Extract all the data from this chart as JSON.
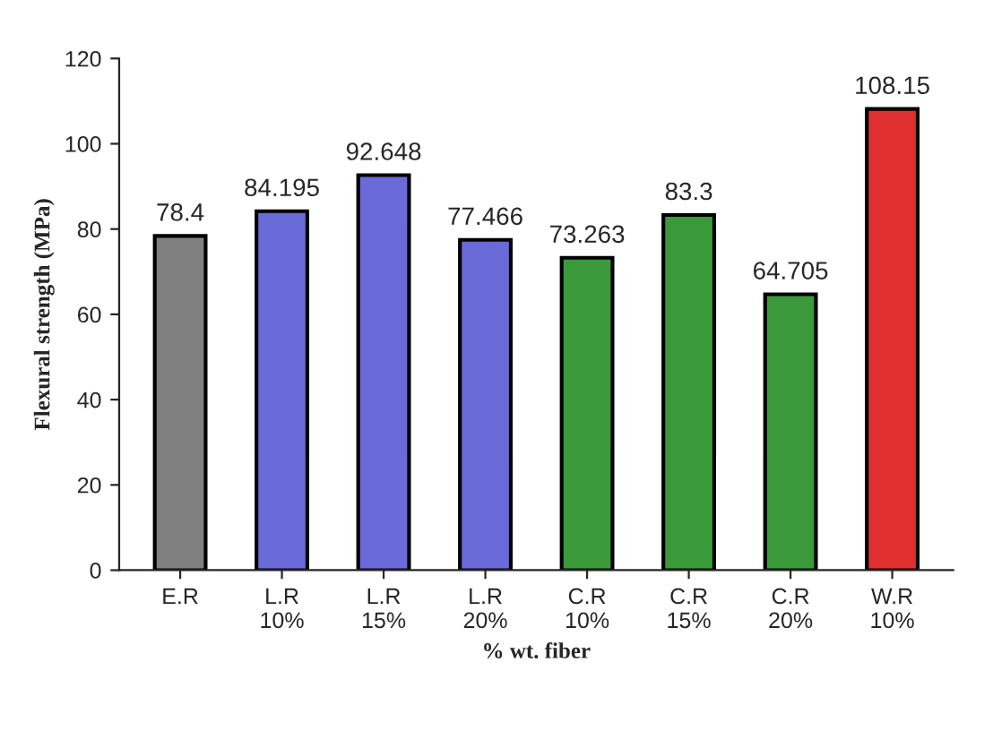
{
  "chart_data": {
    "type": "bar",
    "xlabel": "% wt. fiber",
    "ylabel": "Flexural strength (MPa)",
    "categories": [
      "E.R",
      "L.R\n10%",
      "L.R\n15%",
      "L.R\n20%",
      "C.R\n10%",
      "C.R\n15%",
      "C.R\n20%",
      "W.R\n10%"
    ],
    "values": [
      78.4,
      84.195,
      92.648,
      77.466,
      73.263,
      83.3,
      64.705,
      108.15
    ],
    "colors": [
      "#808080",
      "#6a6ad8",
      "#6a6ad8",
      "#6a6ad8",
      "#3a9a3a",
      "#3a9a3a",
      "#3a9a3a",
      "#e03030"
    ],
    "ylim": [
      0,
      120
    ],
    "yticks": [
      0,
      20,
      40,
      60,
      80,
      100,
      120
    ],
    "data_labels": true,
    "grid": false
  }
}
